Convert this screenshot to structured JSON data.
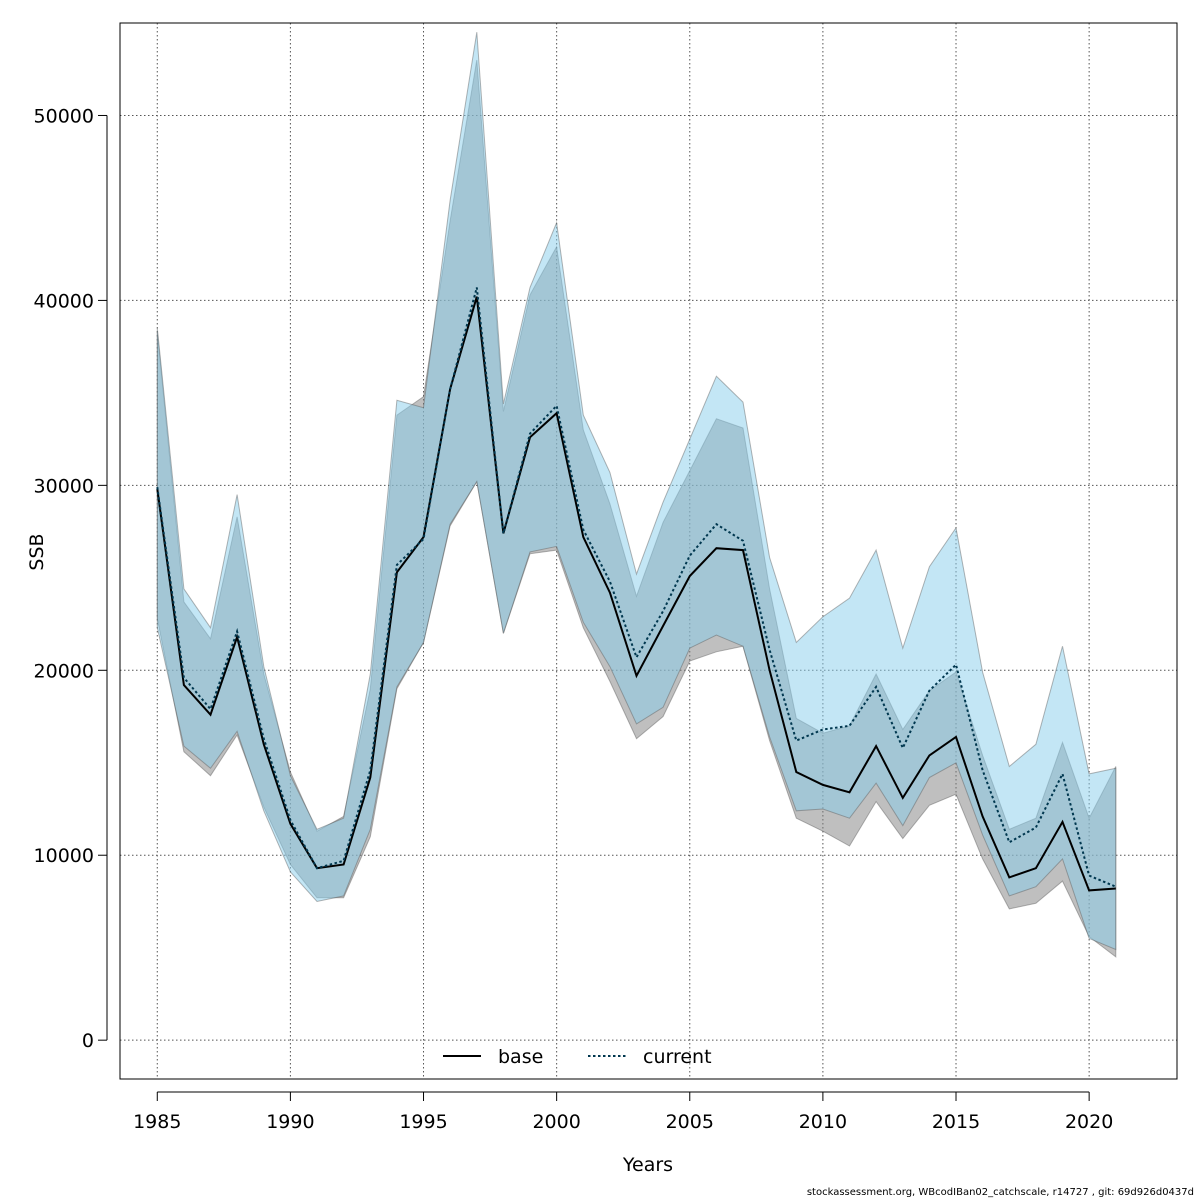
{
  "chart_data": {
    "type": "line",
    "xlabel": "Years",
    "ylabel": "SSB",
    "xlim": [
      1983.6,
      2023.3
    ],
    "ylim": [
      -2100,
      55000
    ],
    "xticks": [
      1985,
      1990,
      1995,
      2000,
      2005,
      2010,
      2015,
      2020
    ],
    "yticks": [
      0,
      10000,
      20000,
      30000,
      40000,
      50000
    ],
    "grid": true,
    "legend_position": "bottom-center",
    "x": [
      1985,
      1986,
      1987,
      1988,
      1989,
      1990,
      1991,
      1992,
      1993,
      1994,
      1995,
      1996,
      1997,
      1998,
      1999,
      2000,
      2001,
      2002,
      2003,
      2004,
      2005,
      2006,
      2007,
      2008,
      2009,
      2010,
      2011,
      2012,
      2013,
      2014,
      2015,
      2016,
      2017,
      2018,
      2019,
      2020,
      2021
    ],
    "series": [
      {
        "name": "base",
        "color": "#000000",
        "line_style": "solid",
        "band_color": "#808080",
        "values": [
          29800,
          19200,
          17600,
          21800,
          16000,
          11700,
          9300,
          9500,
          14200,
          25300,
          27200,
          35200,
          40200,
          27400,
          32600,
          33900,
          27200,
          24200,
          19700,
          22400,
          25100,
          26600,
          26500,
          20000,
          14500,
          13800,
          13400,
          15900,
          13100,
          15400,
          16400,
          12100,
          8800,
          9300,
          11800,
          8100,
          8200
        ],
        "lower": [
          22800,
          15600,
          14300,
          16500,
          12600,
          9500,
          7700,
          7700,
          11000,
          19000,
          21500,
          27800,
          30200,
          22000,
          26300,
          26500,
          22300,
          19400,
          16300,
          17500,
          20500,
          21000,
          21300,
          16200,
          12000,
          11300,
          10500,
          12900,
          10900,
          12700,
          13300,
          9800,
          7100,
          7400,
          8600,
          5600,
          4500
        ],
        "upper": [
          38300,
          23700,
          21700,
          28300,
          19800,
          14500,
          11300,
          12100,
          19000,
          33800,
          34800,
          44300,
          53000,
          34000,
          40300,
          42900,
          33000,
          29000,
          24000,
          28000,
          30800,
          33600,
          33100,
          24400,
          17400,
          16600,
          17000,
          19800,
          16800,
          18900,
          19900,
          15400,
          11400,
          12000,
          16100,
          12000,
          14800
        ]
      },
      {
        "name": "current",
        "color": "#00374f",
        "line_style": "dotted",
        "band_color": "#87ceeb",
        "values": [
          29900,
          19600,
          17900,
          22100,
          16300,
          11900,
          9300,
          9700,
          14600,
          25700,
          27100,
          35200,
          40700,
          27400,
          32800,
          34300,
          27600,
          24800,
          20700,
          23200,
          26200,
          27900,
          27000,
          21100,
          16200,
          16800,
          17000,
          19100,
          15800,
          18900,
          20300,
          14600,
          10700,
          11500,
          14400,
          8900,
          8300
        ],
        "lower": [
          22300,
          15900,
          14700,
          16700,
          12400,
          9100,
          7500,
          7800,
          11400,
          19100,
          21500,
          27900,
          30200,
          22000,
          26400,
          26700,
          22600,
          20200,
          17100,
          18000,
          21200,
          21900,
          21300,
          16400,
          12400,
          12500,
          12000,
          13900,
          11600,
          14200,
          15000,
          11100,
          7800,
          8300,
          9800,
          5500,
          4900
        ],
        "upper": [
          38500,
          24400,
          22300,
          29500,
          20200,
          14300,
          11400,
          12000,
          19800,
          34600,
          34200,
          45400,
          54500,
          34400,
          40700,
          44200,
          33800,
          30700,
          25200,
          29100,
          32500,
          35900,
          34500,
          26100,
          21500,
          22900,
          23900,
          26500,
          21200,
          25600,
          27700,
          19900,
          14800,
          16000,
          21300,
          14400,
          14700
        ]
      }
    ]
  },
  "footer": {
    "text": "stockassessment.org, WBcodIBan02_catchscale, r14727 , git: 69d926d0437d"
  }
}
